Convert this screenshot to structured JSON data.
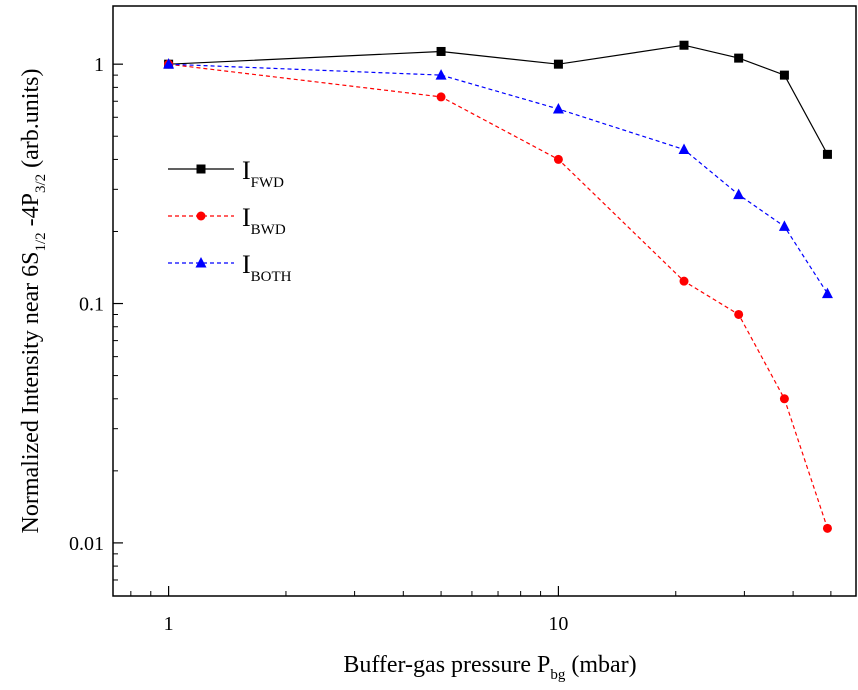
{
  "chart_data": {
    "type": "line",
    "xscale": "log",
    "yscale": "log",
    "xlim": [
      0.72,
      58
    ],
    "ylim": [
      0.006,
      1.75
    ],
    "xticks": [
      {
        "value": 1,
        "label": "1"
      },
      {
        "value": 10,
        "label": "10"
      }
    ],
    "yticks": [
      {
        "value": 0.01,
        "label": "0.01"
      },
      {
        "value": 0.1,
        "label": "0.1"
      },
      {
        "value": 1,
        "label": "1"
      }
    ],
    "xlabel": {
      "main": "Buffer-gas pressure P",
      "sub": "bg",
      "unit": " (mbar)"
    },
    "ylabel": {
      "p1": "Normalized Intensity near 6S",
      "s1": "1/2",
      "p2": " -4P",
      "s2": "3/2",
      "p3": " (arb.units)"
    },
    "legend_position": "left-middle",
    "series": [
      {
        "name": "I",
        "name_sub": "FWD",
        "color": "#000000",
        "marker": "square",
        "line": "solid",
        "x": [
          1,
          5,
          10,
          21,
          29,
          38,
          49
        ],
        "y": [
          1.0,
          1.13,
          1.0,
          1.2,
          1.06,
          0.9,
          0.42
        ]
      },
      {
        "name": "I",
        "name_sub": "BWD",
        "color": "#ff0000",
        "marker": "circle",
        "line": "dashed",
        "x": [
          1,
          5,
          10,
          21,
          29,
          38,
          49
        ],
        "y": [
          1.0,
          0.73,
          0.4,
          0.124,
          0.09,
          0.04,
          0.0115
        ]
      },
      {
        "name": "I",
        "name_sub": "BOTH",
        "color": "#0000ff",
        "marker": "triangle",
        "line": "dashed",
        "x": [
          1,
          5,
          10,
          21,
          29,
          38,
          49
        ],
        "y": [
          1.0,
          0.9,
          0.65,
          0.44,
          0.285,
          0.21,
          0.11
        ]
      }
    ]
  }
}
